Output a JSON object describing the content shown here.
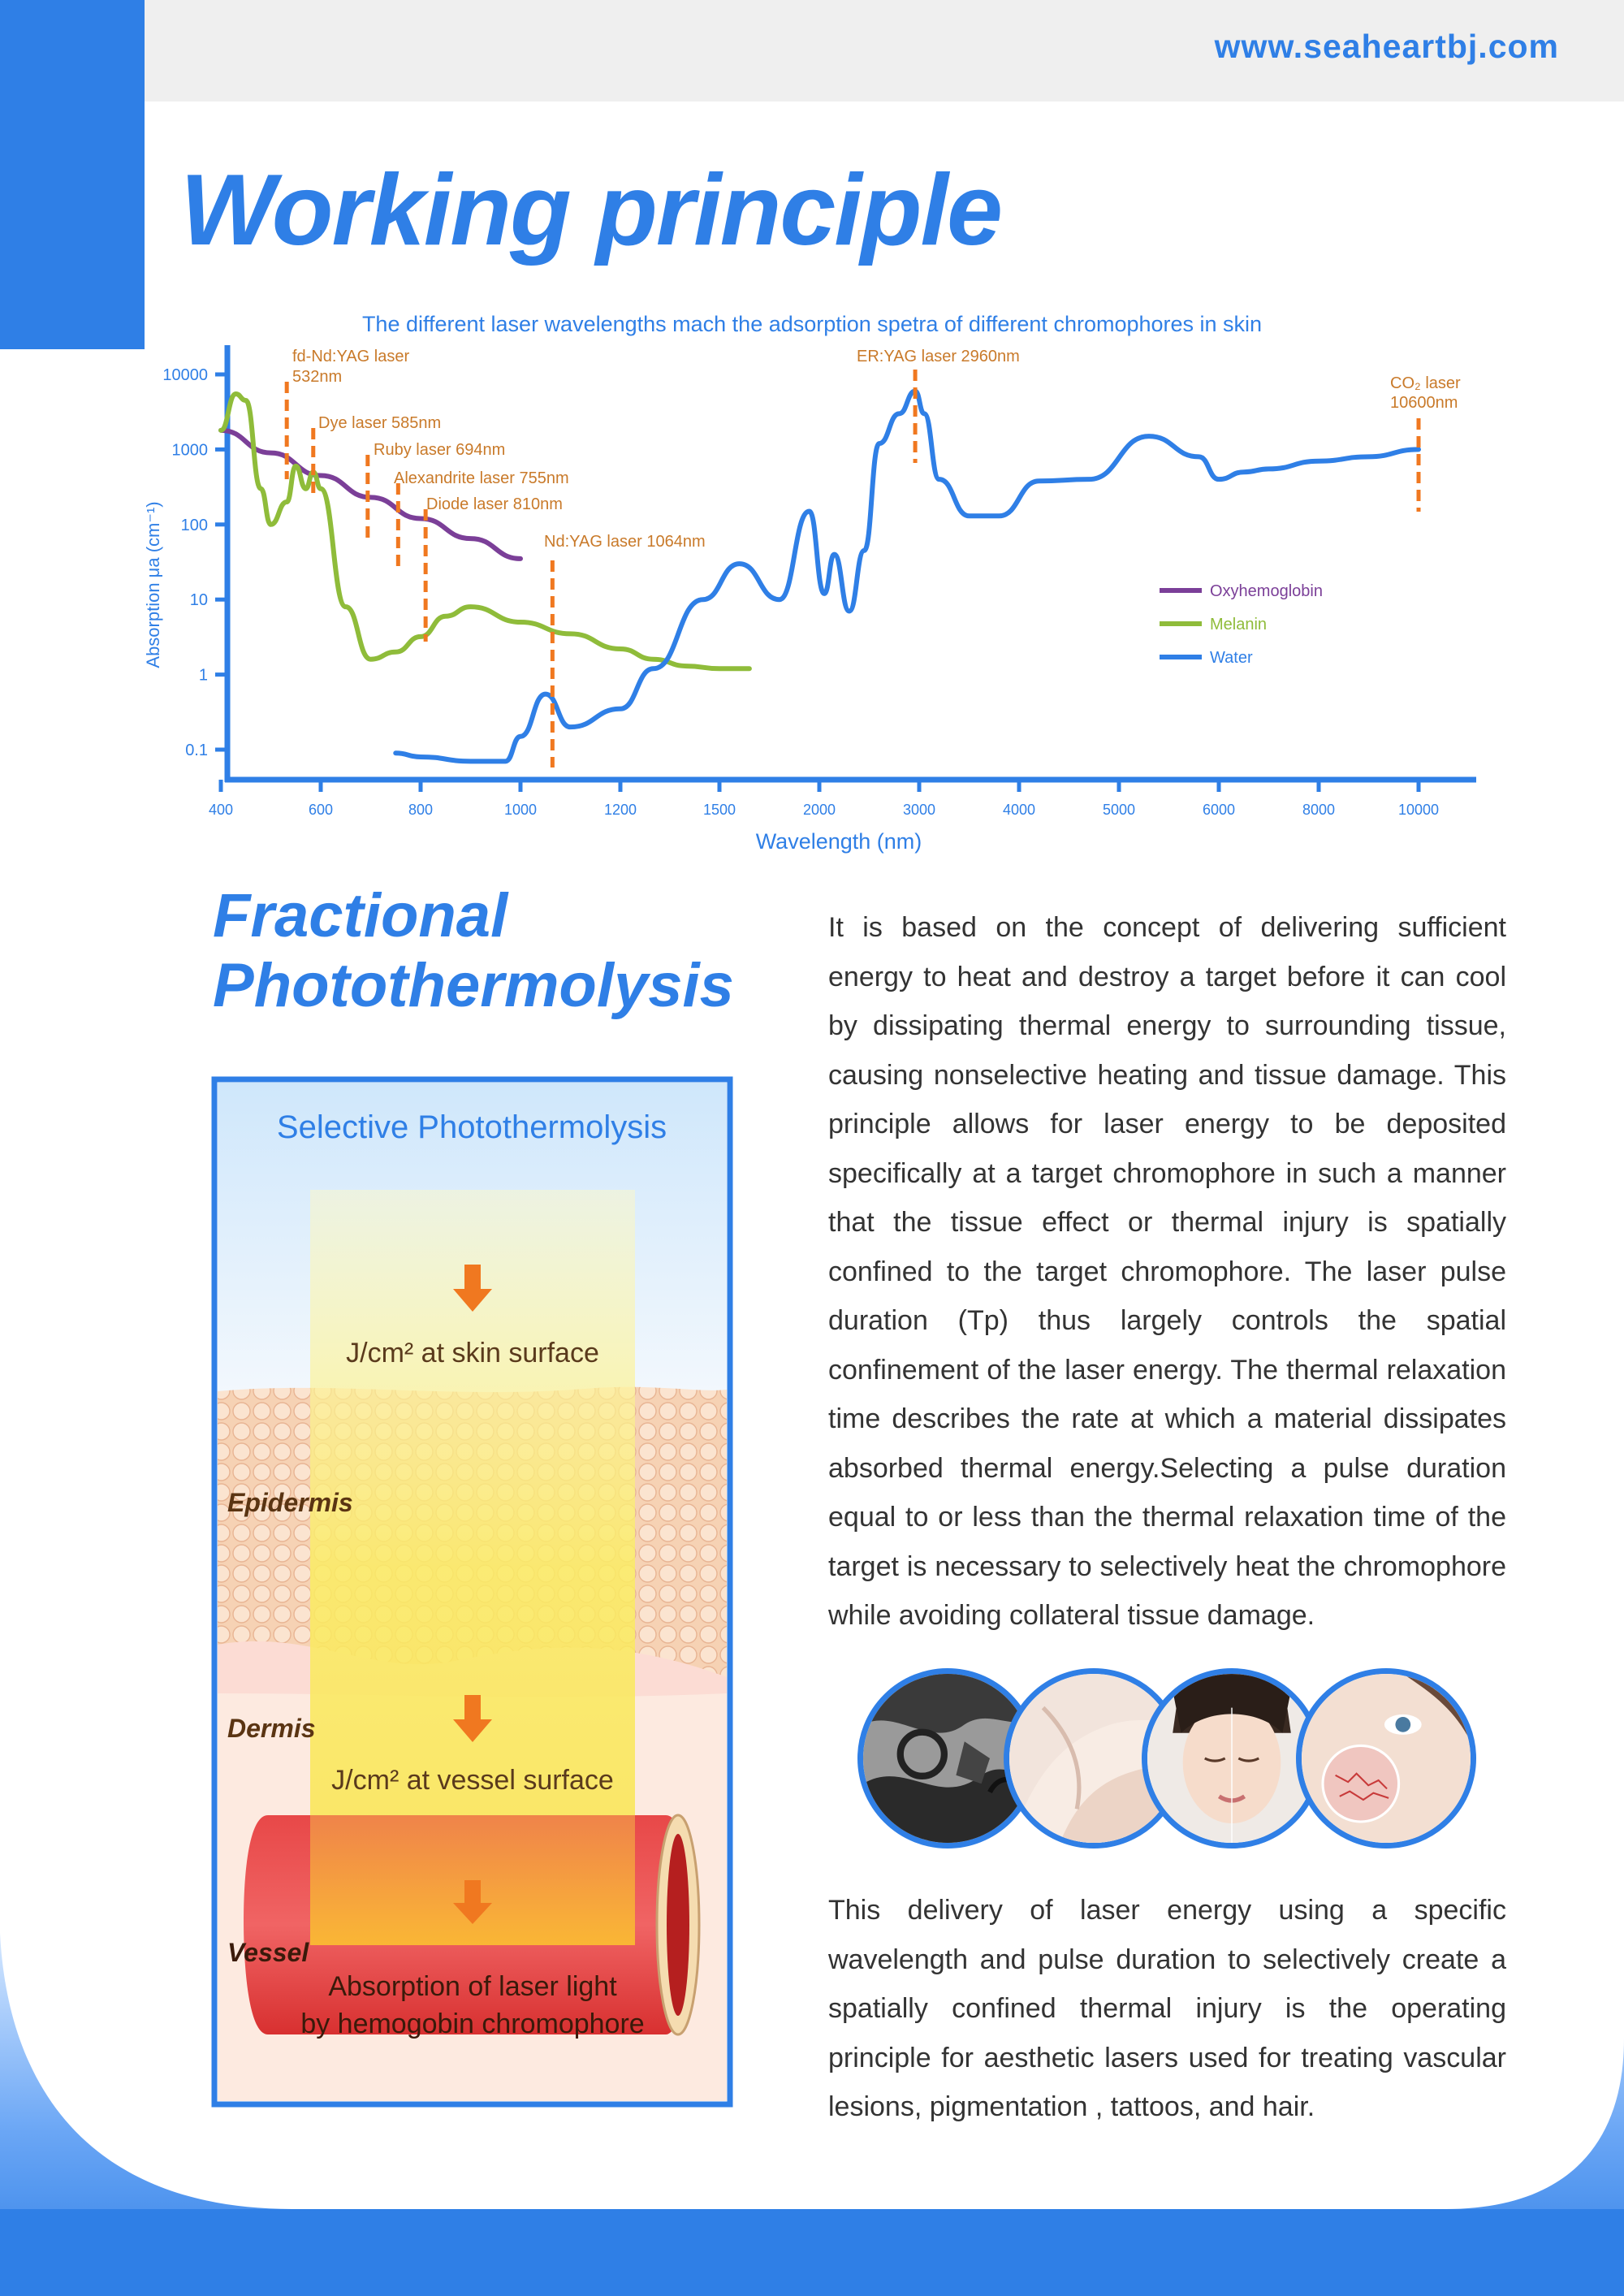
{
  "header": {
    "url": "www.seaheartbj.com",
    "title": "Working principle"
  },
  "chart_data": {
    "type": "line",
    "title": "The different laser wavelengths mach the adsorption spetra of different chromophores in skin",
    "xlabel": "Wavelength (nm)",
    "ylabel": "Absorption μa (cm⁻¹)",
    "y_scale": "log",
    "ylim": [
      0.06,
      12000
    ],
    "x_ticks": [
      400,
      600,
      800,
      1000,
      1200,
      1500,
      2000,
      3000,
      4000,
      5000,
      6000,
      8000,
      10000
    ],
    "y_ticks": [
      "10000",
      "1000",
      "100",
      "10",
      "1",
      "0.1"
    ],
    "legend_position": "right",
    "series": [
      {
        "name": "Oxyhemoglobin",
        "color": "#7b3f98",
        "x": [
          400,
          500,
          600,
          700,
          800,
          900,
          1000
        ],
        "y": [
          1800,
          900,
          450,
          230,
          120,
          65,
          35
        ]
      },
      {
        "name": "Melanin",
        "color": "#8fbc3a",
        "x": [
          400,
          430,
          450,
          480,
          500,
          532,
          550,
          570,
          585,
          600,
          650,
          700,
          750,
          800,
          850,
          900,
          1000,
          1100,
          1200,
          1300,
          1400,
          1500,
          1600,
          1650
        ],
        "y": [
          1800,
          5500,
          4500,
          300,
          100,
          200,
          600,
          300,
          500,
          300,
          8,
          1.6,
          2,
          3.2,
          6,
          8,
          5,
          3.5,
          2.2,
          1.6,
          1.3,
          1.2,
          1.2,
          1.2
        ]
      },
      {
        "name": "Water",
        "color": "#2f7fe6",
        "x": [
          750,
          800,
          900,
          970,
          1000,
          1050,
          1100,
          1200,
          1300,
          1450,
          1600,
          1800,
          1950,
          2050,
          2150,
          2300,
          2450,
          2600,
          2800,
          2960,
          3050,
          3200,
          3500,
          3800,
          4200,
          4700,
          5300,
          5800,
          6000,
          6500,
          7000,
          8000,
          9000,
          10000
        ],
        "y": [
          0.09,
          0.08,
          0.07,
          0.07,
          0.15,
          0.55,
          0.2,
          0.35,
          1.2,
          10,
          30,
          10,
          150,
          12,
          40,
          7,
          45,
          1200,
          3000,
          6000,
          3000,
          400,
          130,
          130,
          380,
          400,
          1500,
          800,
          400,
          500,
          550,
          700,
          800,
          1000
        ]
      }
    ],
    "lasers": [
      {
        "label": "fd-Nd:YAG laser",
        "label2": "532nm",
        "x": 532
      },
      {
        "label": "Dye laser 585nm",
        "x": 585
      },
      {
        "label": "Ruby laser 694nm",
        "x": 694
      },
      {
        "label": "Alexandrite laser 755nm",
        "x": 755
      },
      {
        "label": "Diode laser 810nm",
        "x": 810
      },
      {
        "label": "Nd:YAG laser 1064nm",
        "x": 1064
      },
      {
        "label": "ER:YAG laser 2960nm",
        "x": 2960
      },
      {
        "label": "CO₂ laser",
        "label2": "10600nm",
        "x": 10000
      }
    ]
  },
  "section": {
    "title_line1": "Fractional",
    "title_line2": "Photothermolysis",
    "paragraph1": "It is based on the concept of delivering sufficient energy to heat and destroy a target before it can cool by dissipating thermal energy to surrounding tissue, causing nonselective heating and tissue damage. This principle allows for laser energy to be deposited specifically at a target chromophore in such a manner that the tissue effect or thermal injury is spatially confined to the target chromophore. The laser pulse duration (Tp) thus largely controls the spatial confinement of the laser energy. The thermal relaxation time describes the rate at which a material dissipates absorbed thermal energy.Selecting a pulse duration equal to or less than the thermal relaxation time of the target is necessary to selectively heat the chromophore while avoiding collateral tissue damage.",
    "paragraph2": "This delivery of laser energy using a specific wavelength and pulse duration to selectively create a spatially confined thermal injury is the operating principle for aesthetic lasers used for treating vascular lesions, pigmentation , tattoos, and hair."
  },
  "diagram": {
    "title": "Selective Photothermolysis",
    "surface_label": "J/cm² at skin surface",
    "epidermis": "Epidermis",
    "dermis": "Dermis",
    "vessel_surface_label": "J/cm² at vessel surface",
    "vessel": "Vessel",
    "absorption_line1": "Absorption of laser light",
    "absorption_line2": "by hemogobin chromophore"
  },
  "circles": [
    "tattoo",
    "hair removal",
    "skin rejuvenation",
    "vascular lesions"
  ]
}
